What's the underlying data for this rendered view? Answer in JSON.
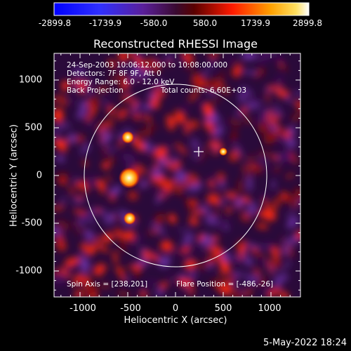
{
  "colorbar": {
    "ticks": [
      "-2899.8",
      "-1739.9",
      "-580.0",
      "580.0",
      "1739.9",
      "2899.8"
    ]
  },
  "plot": {
    "title": "Reconstructed RHESSI Image",
    "xlabel": "Heliocentric X (arcsec)",
    "ylabel": "Heliocentric Y (arcsec)",
    "xticks": [
      "-1000",
      "-500",
      "0",
      "500",
      "1000"
    ],
    "yticks": [
      "1000",
      "500",
      "0",
      "-500",
      "-1000"
    ]
  },
  "info": {
    "time_range": "24-Sep-2003 10:06:12.000 to 10:08:00.000",
    "detectors": "Detectors: 7F 8F 9F, Att 0",
    "energy_range": "Energy Range: 6.0 - 12.0 keV",
    "method": "Back Projection",
    "total_counts": "Total counts: 6.60E+03",
    "spin_axis": "Spin Axis = [238,201]",
    "flare_position": "Flare Position = [-486,-26]"
  },
  "footer": {
    "date": "5-May-2022 18:24"
  },
  "chart_data": {
    "type": "heatmap",
    "title": "Reconstructed RHESSI Image",
    "xlabel": "Heliocentric X (arcsec)",
    "ylabel": "Heliocentric Y (arcsec)",
    "xlim": [
      -1300,
      1300
    ],
    "ylim": [
      -1300,
      1300
    ],
    "colorbar_range": [
      -2899.8,
      2899.8
    ],
    "spin_axis": [
      238,
      201
    ],
    "flare_position": [
      -486,
      -26
    ],
    "solar_limb_radius_arcsec": 960,
    "colors": {
      "negative": "#1a1aff",
      "low": "#6a2fa0",
      "mid": "#ff2a0a",
      "high": "#ffd23a",
      "max": "#ffffff"
    }
  }
}
